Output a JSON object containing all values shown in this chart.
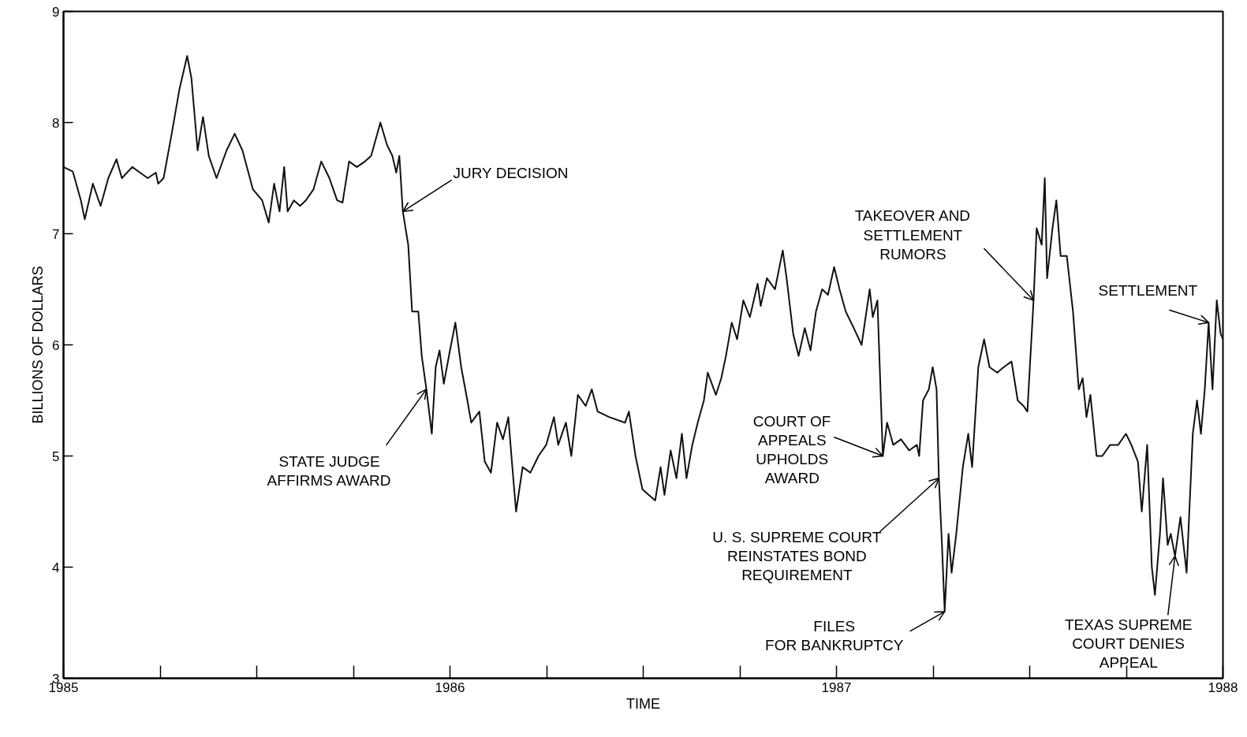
{
  "chart_data": {
    "type": "line",
    "xlabel": "TIME",
    "ylabel": "BILLIONS OF DOLLARS",
    "xlim": [
      1985,
      1988
    ],
    "ylim": [
      3,
      9
    ],
    "xticks": [
      1985,
      {
        "value": 1985.25,
        "label": null
      },
      {
        "value": 1985.5,
        "label": null
      },
      {
        "value": 1985.75,
        "label": null
      },
      1986,
      {
        "value": 1986.25,
        "label": null
      },
      {
        "value": 1986.5,
        "label": null
      },
      {
        "value": 1986.75,
        "label": null
      },
      1987,
      {
        "value": 1987.25,
        "label": null
      },
      {
        "value": 1987.5,
        "label": null
      },
      {
        "value": 1987.75,
        "label": null
      },
      1988
    ],
    "yticks": [
      3,
      4,
      5,
      6,
      7,
      8,
      9
    ],
    "grid": false,
    "marker": "none",
    "line_style": "solid",
    "series": [
      {
        "color": "#111111",
        "x": [
          1985.0,
          1985.024,
          1985.045,
          1985.055,
          1985.076,
          1985.096,
          1985.116,
          1985.137,
          1985.151,
          1985.178,
          1985.198,
          1985.218,
          1985.239,
          1985.245,
          1985.259,
          1985.28,
          1985.3,
          1985.32,
          1985.331,
          1985.347,
          1985.361,
          1985.376,
          1985.396,
          1985.422,
          1985.443,
          1985.463,
          1985.49,
          1985.514,
          1985.531,
          1985.545,
          1985.559,
          1985.571,
          1985.58,
          1985.596,
          1985.612,
          1985.627,
          1985.647,
          1985.667,
          1985.688,
          1985.708,
          1985.722,
          1985.739,
          1985.759,
          1985.78,
          1985.796,
          1985.82,
          1985.837,
          1985.851,
          1985.861,
          1985.869,
          1985.878,
          1985.892,
          1985.902,
          1985.918,
          1985.927,
          1985.939,
          1985.953,
          1985.963,
          1985.973,
          1985.984,
          1986.0,
          1986.014,
          1986.029,
          1986.045,
          1986.055,
          1986.076,
          1986.09,
          1986.106,
          1986.122,
          1986.137,
          1986.151,
          1986.159,
          1986.171,
          1986.188,
          1986.208,
          1986.229,
          1986.249,
          1986.269,
          1986.28,
          1986.3,
          1986.314,
          1986.331,
          1986.351,
          1986.367,
          1986.382,
          1986.412,
          1986.453,
          1986.463,
          1986.48,
          1986.498,
          1986.514,
          1986.531,
          1986.545,
          1986.555,
          1986.571,
          1986.586,
          1986.6,
          1986.612,
          1986.627,
          1986.641,
          1986.657,
          1986.667,
          1986.688,
          1986.702,
          1986.714,
          1986.729,
          1986.743,
          1986.759,
          1986.776,
          1986.796,
          1986.804,
          1986.82,
          1986.841,
          1986.861,
          1986.871,
          1986.888,
          1986.902,
          1986.918,
          1986.933,
          1986.947,
          1986.963,
          1986.978,
          1986.994,
          1987.008,
          1987.024,
          1987.045,
          1987.065,
          1987.086,
          1987.094,
          1987.106,
          1987.12,
          1987.131,
          1987.147,
          1987.167,
          1987.188,
          1987.208,
          1987.214,
          1987.224,
          1987.239,
          1987.249,
          1987.259,
          1987.265,
          1987.273,
          1987.28,
          1987.29,
          1987.298,
          1987.31,
          1987.327,
          1987.341,
          1987.351,
          1987.367,
          1987.382,
          1987.396,
          1987.416,
          1987.433,
          1987.453,
          1987.469,
          1987.484,
          1987.494,
          1987.51,
          1987.518,
          1987.531,
          1987.539,
          1987.545,
          1987.559,
          1987.569,
          1987.58,
          1987.596,
          1987.612,
          1987.627,
          1987.637,
          1987.647,
          1987.657,
          1987.673,
          1987.688,
          1987.708,
          1987.729,
          1987.749,
          1987.763,
          1987.78,
          1987.79,
          1987.804,
          1987.816,
          1987.824,
          1987.837,
          1987.845,
          1987.857,
          1987.865,
          1987.876,
          1987.89,
          1987.906,
          1987.922,
          1987.933,
          1987.943,
          1987.953,
          1987.963,
          1987.973,
          1987.984,
          1987.994,
          1988.0
        ],
        "values": [
          7.6,
          7.56,
          7.3,
          7.13,
          7.45,
          7.25,
          7.5,
          7.67,
          7.5,
          7.6,
          7.55,
          7.5,
          7.55,
          7.45,
          7.5,
          7.9,
          8.3,
          8.6,
          8.4,
          7.75,
          8.05,
          7.7,
          7.5,
          7.75,
          7.9,
          7.75,
          7.4,
          7.3,
          7.1,
          7.45,
          7.2,
          7.6,
          7.2,
          7.3,
          7.25,
          7.3,
          7.4,
          7.65,
          7.5,
          7.3,
          7.28,
          7.65,
          7.6,
          7.65,
          7.7,
          8.0,
          7.8,
          7.7,
          7.55,
          7.7,
          7.2,
          6.9,
          6.3,
          6.3,
          5.9,
          5.6,
          5.2,
          5.8,
          5.95,
          5.65,
          5.95,
          6.2,
          5.8,
          5.5,
          5.3,
          5.4,
          4.95,
          4.85,
          5.3,
          5.15,
          5.35,
          5.0,
          4.5,
          4.9,
          4.85,
          5.0,
          5.1,
          5.35,
          5.1,
          5.3,
          5.0,
          5.55,
          5.45,
          5.6,
          5.4,
          5.35,
          5.3,
          5.4,
          5.0,
          4.7,
          4.65,
          4.6,
          4.9,
          4.65,
          5.05,
          4.8,
          5.2,
          4.8,
          5.1,
          5.3,
          5.5,
          5.75,
          5.55,
          5.7,
          5.9,
          6.2,
          6.05,
          6.4,
          6.25,
          6.55,
          6.35,
          6.6,
          6.5,
          6.85,
          6.6,
          6.1,
          5.9,
          6.15,
          5.95,
          6.3,
          6.5,
          6.45,
          6.7,
          6.5,
          6.3,
          6.15,
          6.0,
          6.5,
          6.25,
          6.4,
          5.0,
          5.3,
          5.1,
          5.15,
          5.05,
          5.1,
          5.0,
          5.5,
          5.6,
          5.8,
          5.6,
          4.8,
          4.2,
          3.6,
          4.3,
          3.95,
          4.3,
          4.9,
          5.2,
          4.9,
          5.8,
          6.05,
          5.8,
          5.75,
          5.8,
          5.85,
          5.5,
          5.45,
          5.4,
          6.4,
          7.05,
          6.9,
          7.5,
          6.6,
          7.05,
          7.3,
          6.8,
          6.8,
          6.3,
          5.6,
          5.7,
          5.35,
          5.55,
          5.0,
          5.0,
          5.1,
          5.1,
          5.2,
          5.1,
          4.95,
          4.5,
          5.1,
          4.0,
          3.75,
          4.3,
          4.8,
          4.2,
          4.3,
          4.1,
          4.45,
          3.95,
          5.2,
          5.5,
          5.2,
          5.6,
          6.2,
          5.6,
          6.4,
          6.1,
          6.05
        ]
      }
    ],
    "annotations": [
      {
        "text": "JURY DECISION",
        "x": 1985.878,
        "y": 7.2
      },
      {
        "text": "STATE JUDGE\nAFFIRMS AWARD",
        "x": 1985.939,
        "y": 5.6
      },
      {
        "text": "COURT OF\nAPPEALS\nUPHOLDS\nAWARD",
        "x": 1987.12,
        "y": 5.0
      },
      {
        "text": "U. S. SUPREME COURT\nREINSTATES BOND\nREQUIREMENT",
        "x": 1987.265,
        "y": 4.8
      },
      {
        "text": "FILES\nFOR BANKRUPTCY",
        "x": 1987.28,
        "y": 3.6
      },
      {
        "text": "TAKEOVER AND\nSETTLEMENT\nRUMORS",
        "x": 1987.51,
        "y": 6.4
      },
      {
        "text": "SETTLEMENT",
        "x": 1987.963,
        "y": 6.2
      },
      {
        "text": "TEXAS SUPREME\nCOURT DENIES\nAPPEAL",
        "x": 1987.876,
        "y": 4.1
      }
    ]
  }
}
